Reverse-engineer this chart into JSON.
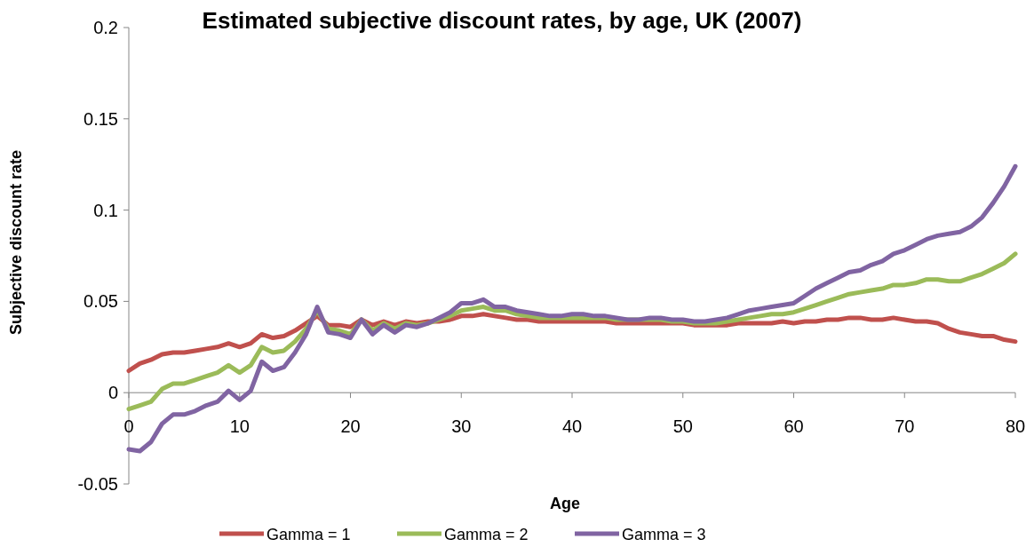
{
  "chart_data": {
    "type": "line",
    "title": "Estimated subjective discount rates, by age, UK (2007)",
    "xlabel": "Age",
    "ylabel": "Subjective discount  rate",
    "x": [
      0,
      1,
      2,
      3,
      4,
      5,
      6,
      7,
      8,
      9,
      10,
      11,
      12,
      13,
      14,
      15,
      16,
      17,
      18,
      19,
      20,
      21,
      22,
      23,
      24,
      25,
      26,
      27,
      28,
      29,
      30,
      31,
      32,
      33,
      34,
      35,
      36,
      37,
      38,
      39,
      40,
      41,
      42,
      43,
      44,
      45,
      46,
      47,
      48,
      49,
      50,
      51,
      52,
      53,
      54,
      55,
      56,
      57,
      58,
      59,
      60,
      61,
      62,
      63,
      64,
      65,
      66,
      67,
      68,
      69,
      70,
      71,
      72,
      73,
      74,
      75,
      76,
      77,
      78,
      79,
      80
    ],
    "series": [
      {
        "name": "Gamma = 1",
        "color": "#c0504d",
        "values": [
          0.012,
          0.016,
          0.018,
          0.021,
          0.022,
          0.022,
          0.023,
          0.024,
          0.025,
          0.027,
          0.025,
          0.027,
          0.032,
          0.03,
          0.031,
          0.034,
          0.038,
          0.042,
          0.037,
          0.037,
          0.036,
          0.04,
          0.037,
          0.039,
          0.037,
          0.039,
          0.038,
          0.039,
          0.039,
          0.04,
          0.042,
          0.042,
          0.043,
          0.042,
          0.041,
          0.04,
          0.04,
          0.039,
          0.039,
          0.039,
          0.039,
          0.039,
          0.039,
          0.039,
          0.038,
          0.038,
          0.038,
          0.038,
          0.038,
          0.038,
          0.038,
          0.037,
          0.037,
          0.037,
          0.037,
          0.038,
          0.038,
          0.038,
          0.038,
          0.039,
          0.038,
          0.039,
          0.039,
          0.04,
          0.04,
          0.041,
          0.041,
          0.04,
          0.04,
          0.041,
          0.04,
          0.039,
          0.039,
          0.038,
          0.035,
          0.033,
          0.032,
          0.031,
          0.031,
          0.029,
          0.028
        ]
      },
      {
        "name": "Gamma = 2",
        "color": "#9bbb59",
        "values": [
          -0.009,
          -0.007,
          -0.005,
          0.002,
          0.005,
          0.005,
          0.007,
          0.009,
          0.011,
          0.015,
          0.011,
          0.015,
          0.025,
          0.022,
          0.023,
          0.028,
          0.035,
          0.045,
          0.035,
          0.034,
          0.032,
          0.04,
          0.034,
          0.038,
          0.035,
          0.038,
          0.037,
          0.038,
          0.04,
          0.042,
          0.045,
          0.046,
          0.047,
          0.045,
          0.045,
          0.043,
          0.042,
          0.041,
          0.041,
          0.041,
          0.041,
          0.041,
          0.041,
          0.041,
          0.04,
          0.04,
          0.04,
          0.04,
          0.04,
          0.039,
          0.039,
          0.038,
          0.038,
          0.038,
          0.039,
          0.04,
          0.041,
          0.042,
          0.043,
          0.043,
          0.044,
          0.046,
          0.048,
          0.05,
          0.052,
          0.054,
          0.055,
          0.056,
          0.057,
          0.059,
          0.059,
          0.06,
          0.062,
          0.062,
          0.061,
          0.061,
          0.063,
          0.065,
          0.068,
          0.071,
          0.076
        ]
      },
      {
        "name": "Gamma = 3",
        "color": "#8064a2",
        "values": [
          -0.031,
          -0.032,
          -0.027,
          -0.017,
          -0.012,
          -0.012,
          -0.01,
          -0.007,
          -0.005,
          0.001,
          -0.004,
          0.001,
          0.017,
          0.012,
          0.014,
          0.022,
          0.032,
          0.047,
          0.033,
          0.032,
          0.03,
          0.04,
          0.032,
          0.037,
          0.033,
          0.037,
          0.036,
          0.038,
          0.041,
          0.044,
          0.049,
          0.049,
          0.051,
          0.047,
          0.047,
          0.045,
          0.044,
          0.043,
          0.042,
          0.042,
          0.043,
          0.043,
          0.042,
          0.042,
          0.041,
          0.04,
          0.04,
          0.041,
          0.041,
          0.04,
          0.04,
          0.039,
          0.039,
          0.04,
          0.041,
          0.043,
          0.045,
          0.046,
          0.047,
          0.048,
          0.049,
          0.053,
          0.057,
          0.06,
          0.063,
          0.066,
          0.067,
          0.07,
          0.072,
          0.076,
          0.078,
          0.081,
          0.084,
          0.086,
          0.087,
          0.088,
          0.091,
          0.096,
          0.104,
          0.113,
          0.124
        ]
      }
    ],
    "xlim": [
      0,
      80
    ],
    "xticks": [
      0,
      10,
      20,
      30,
      40,
      50,
      60,
      70,
      80
    ],
    "ylim": [
      -0.05,
      0.2
    ],
    "yticks": [
      -0.05,
      0,
      0.05,
      0.1,
      0.15,
      0.2
    ],
    "grid": false,
    "legend": "bottom",
    "marker": "none",
    "line_style": "solid"
  }
}
